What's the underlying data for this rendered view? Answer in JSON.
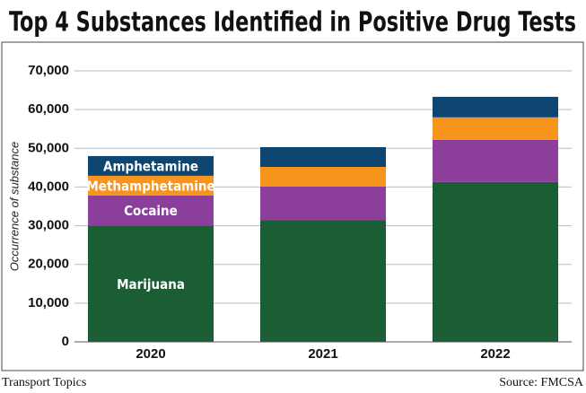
{
  "chart_data": {
    "type": "stacked_bar",
    "title": "Top 4 Substances Identified in Positive Drug Tests",
    "y_label": "Occurrence of substance",
    "categories": [
      "2020",
      "2021",
      "2022"
    ],
    "series": [
      {
        "name": "Marijuana",
        "color": "#1b5e35",
        "values": [
          30000,
          31500,
          41300
        ]
      },
      {
        "name": "Cocaine",
        "color": "#8b3f9b",
        "values": [
          7800,
          8600,
          10900
        ]
      },
      {
        "name": "Methamphetamine",
        "color": "#f7941d",
        "values": [
          5100,
          5100,
          5800
        ]
      },
      {
        "name": "Amphetamine",
        "color": "#0d4670",
        "values": [
          5100,
          5100,
          5300
        ]
      }
    ],
    "ylim": [
      0,
      70000
    ],
    "yticks": [
      0,
      {
        "value": 10000,
        "label": "10,000"
      },
      {
        "value": 20000,
        "label": "20,000"
      },
      {
        "value": 30000,
        "label": "30,000"
      },
      {
        "value": 40000,
        "label": "40,000"
      },
      {
        "value": 50000,
        "label": "50,000"
      },
      {
        "value": 60000,
        "label": "60,000"
      },
      {
        "value": 70000,
        "label": "70,000"
      }
    ],
    "grid": true,
    "credit": "Transport Topics",
    "source": "Source: FMCSA"
  }
}
